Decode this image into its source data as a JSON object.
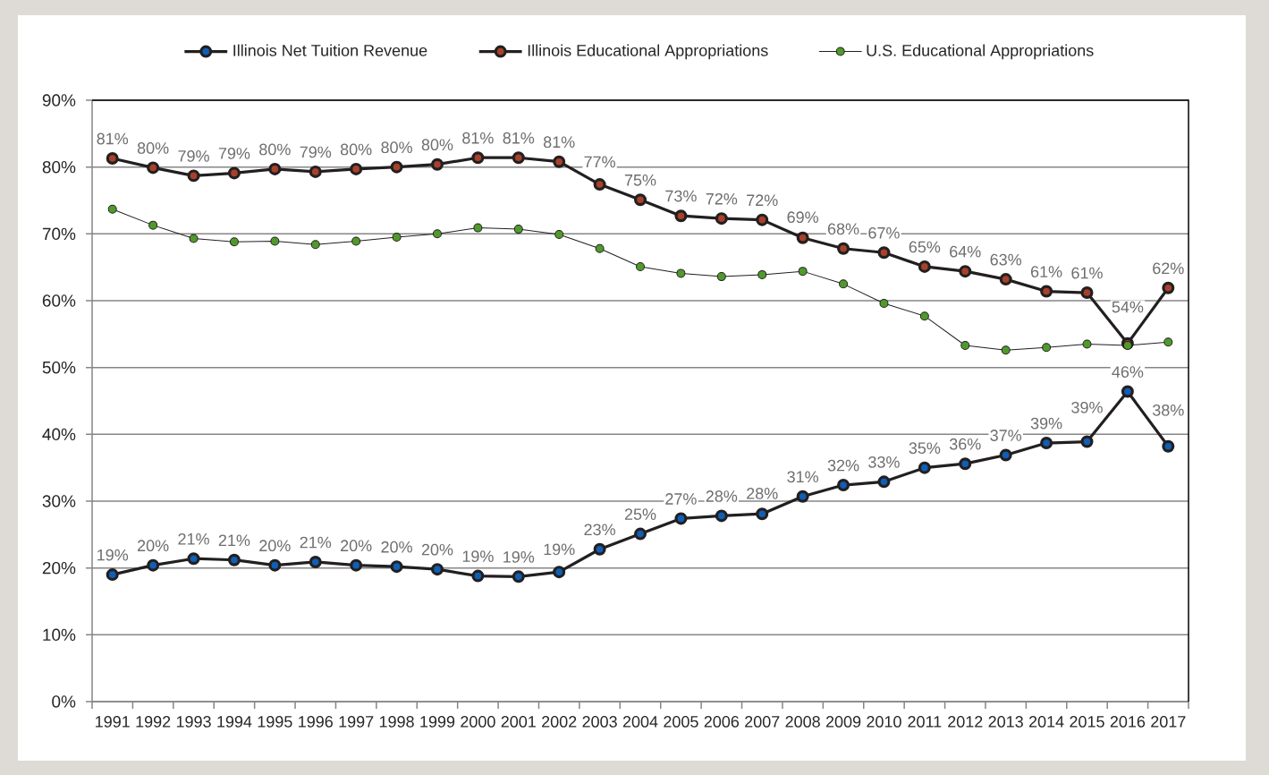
{
  "chart_data": {
    "type": "line",
    "categories": [
      "1991",
      "1992",
      "1993",
      "1994",
      "1995",
      "1996",
      "1997",
      "1998",
      "1999",
      "2000",
      "2001",
      "2002",
      "2003",
      "2004",
      "2005",
      "2006",
      "2007",
      "2008",
      "2009",
      "2010",
      "2011",
      "2012",
      "2013",
      "2014",
      "2015",
      "2016",
      "2017"
    ],
    "series": [
      {
        "name": "Illinois Net Tuition Revenue",
        "color": "#0f5fb5",
        "values": [
          19.0,
          20.4,
          21.4,
          21.2,
          20.4,
          20.9,
          20.4,
          20.2,
          19.8,
          18.8,
          18.7,
          19.4,
          22.8,
          25.1,
          27.4,
          27.8,
          28.1,
          30.7,
          32.4,
          32.9,
          35.0,
          35.6,
          36.9,
          38.7,
          38.9,
          46.4,
          38.2
        ],
        "value_labels": [
          "19%",
          "20%",
          "21%",
          "21%",
          "20%",
          "21%",
          "20%",
          "20%",
          "20%",
          "19%",
          "19%",
          "19%",
          "23%",
          "25%",
          "27%",
          "28%",
          "28%",
          "31%",
          "32%",
          "33%",
          "35%",
          "36%",
          "37%",
          "39%",
          "39%",
          "46%",
          "38%"
        ]
      },
      {
        "name": "Illinois Educational Appropriations",
        "color": "#a8412b",
        "values": [
          81.3,
          79.9,
          78.7,
          79.1,
          79.7,
          79.3,
          79.7,
          80.0,
          80.4,
          81.4,
          81.4,
          80.8,
          77.4,
          75.1,
          72.7,
          72.3,
          72.1,
          69.4,
          67.8,
          67.2,
          65.1,
          64.4,
          63.2,
          61.4,
          61.2,
          53.6,
          61.9
        ],
        "value_labels": [
          "81%",
          "80%",
          "79%",
          "79%",
          "80%",
          "79%",
          "80%",
          "80%",
          "80%",
          "81%",
          "81%",
          "81%",
          "77%",
          "75%",
          "73%",
          "72%",
          "72%",
          "69%",
          "68%",
          "67%",
          "65%",
          "64%",
          "63%",
          "61%",
          "61%",
          "54%",
          "62%"
        ]
      },
      {
        "name": "U.S. Educational Appropriations",
        "color": "#4f9a2b",
        "values": [
          73.7,
          71.3,
          69.3,
          68.8,
          68.9,
          68.4,
          68.9,
          69.5,
          70.0,
          70.9,
          70.7,
          69.9,
          67.8,
          65.1,
          64.1,
          63.6,
          63.9,
          64.4,
          62.5,
          59.6,
          57.7,
          53.3,
          52.6,
          53.0,
          53.5,
          53.3,
          53.8
        ]
      }
    ],
    "ylim": [
      0,
      90
    ],
    "yticks": [
      {
        "value": 0,
        "label": "0%"
      },
      {
        "value": 10,
        "label": "10%"
      },
      {
        "value": 20,
        "label": "20%"
      },
      {
        "value": 30,
        "label": "30%"
      },
      {
        "value": 40,
        "label": "40%"
      },
      {
        "value": 50,
        "label": "50%"
      },
      {
        "value": 60,
        "label": "60%"
      },
      {
        "value": 70,
        "label": "70%"
      },
      {
        "value": 80,
        "label": "80%"
      },
      {
        "value": 90,
        "label": "90%"
      }
    ],
    "grid": "y",
    "legend": "top",
    "marker": "circle",
    "line_style": "solid"
  }
}
